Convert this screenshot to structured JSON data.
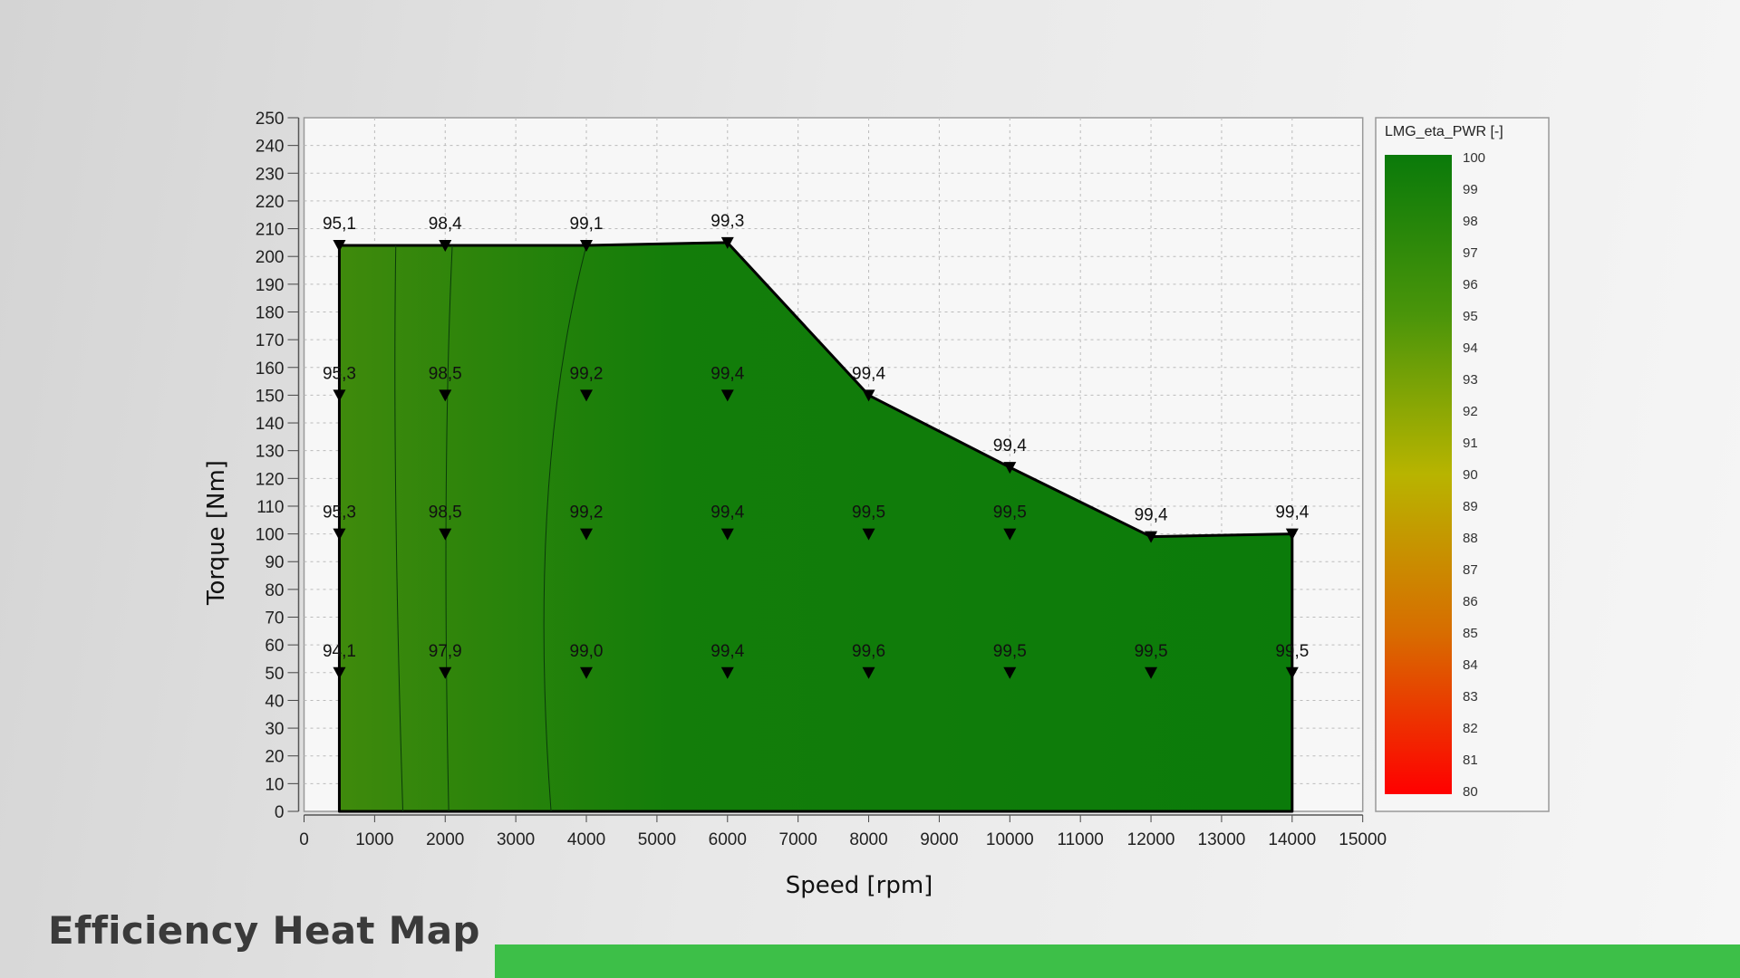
{
  "title": "Efficiency Heat Map",
  "chart_data": {
    "type": "heatmap",
    "xlabel": "Speed [rpm]",
    "ylabel": "Torque [Nm]",
    "xlim": [
      0,
      15000
    ],
    "ylim": [
      0,
      250
    ],
    "xticks": [
      0,
      1000,
      2000,
      3000,
      4000,
      5000,
      6000,
      7000,
      8000,
      9000,
      10000,
      11000,
      12000,
      13000,
      14000,
      15000
    ],
    "yticks": [
      0,
      10,
      20,
      30,
      40,
      50,
      60,
      70,
      80,
      90,
      100,
      110,
      120,
      130,
      140,
      150,
      160,
      170,
      180,
      190,
      200,
      210,
      220,
      230,
      240,
      250
    ],
    "grid": true,
    "boundary": [
      [
        500,
        204
      ],
      [
        2000,
        204
      ],
      [
        4000,
        204
      ],
      [
        6000,
        205
      ],
      [
        8000,
        150
      ],
      [
        10000,
        124
      ],
      [
        12000,
        99
      ],
      [
        14000,
        100
      ],
      [
        14000,
        0
      ],
      [
        500,
        0
      ]
    ],
    "points": [
      {
        "x": 500,
        "y": 204,
        "label": "95,1"
      },
      {
        "x": 500,
        "y": 150,
        "label": "95,3"
      },
      {
        "x": 500,
        "y": 100,
        "label": "95,3"
      },
      {
        "x": 500,
        "y": 50,
        "label": "94,1"
      },
      {
        "x": 2000,
        "y": 204,
        "label": "98,4"
      },
      {
        "x": 2000,
        "y": 150,
        "label": "98,5"
      },
      {
        "x": 2000,
        "y": 100,
        "label": "98,5"
      },
      {
        "x": 2000,
        "y": 50,
        "label": "97,9"
      },
      {
        "x": 4000,
        "y": 204,
        "label": "99,1"
      },
      {
        "x": 4000,
        "y": 150,
        "label": "99,2"
      },
      {
        "x": 4000,
        "y": 100,
        "label": "99,2"
      },
      {
        "x": 4000,
        "y": 50,
        "label": "99,0"
      },
      {
        "x": 6000,
        "y": 205,
        "label": "99,3"
      },
      {
        "x": 6000,
        "y": 150,
        "label": "99,4"
      },
      {
        "x": 6000,
        "y": 100,
        "label": "99,4"
      },
      {
        "x": 6000,
        "y": 50,
        "label": "99,4"
      },
      {
        "x": 8000,
        "y": 150,
        "label": "99,4"
      },
      {
        "x": 8000,
        "y": 100,
        "label": "99,5"
      },
      {
        "x": 8000,
        "y": 50,
        "label": "99,6"
      },
      {
        "x": 10000,
        "y": 124,
        "label": "99,4"
      },
      {
        "x": 10000,
        "y": 100,
        "label": "99,5"
      },
      {
        "x": 10000,
        "y": 50,
        "label": "99,5"
      },
      {
        "x": 12000,
        "y": 99,
        "label": "99,4"
      },
      {
        "x": 12000,
        "y": 50,
        "label": "99,5"
      },
      {
        "x": 14000,
        "y": 100,
        "label": "99,4"
      },
      {
        "x": 14000,
        "y": 50,
        "label": "99,5"
      }
    ],
    "colorbar": {
      "title": "LMG_eta_PWR [-]",
      "range": [
        80,
        100
      ],
      "ticks": [
        "100",
        "99",
        "98",
        "97",
        "96",
        "95",
        "94",
        "93",
        "92",
        "91",
        "90",
        "89",
        "88",
        "87",
        "86",
        "85",
        "84",
        "83",
        "82",
        "81",
        "80"
      ],
      "colors": {
        "100": "#0a7a0a",
        "95": "#4a950a",
        "90": "#b8b400",
        "85": "#d86c00",
        "80": "#ff0000"
      }
    }
  },
  "accent_color": "#3dbf48"
}
